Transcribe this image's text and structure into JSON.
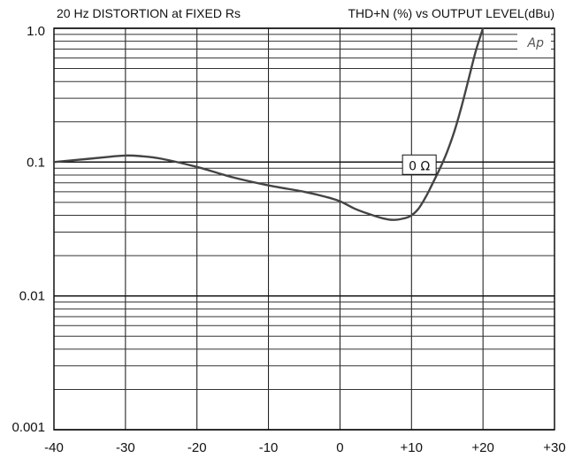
{
  "chart_data": {
    "type": "line",
    "title_left": "20 Hz DISTORTION at FIXED Rs",
    "title_right": "THD+N (%) vs OUTPUT LEVEL(dBu)",
    "xlim": [
      -40,
      30
    ],
    "ylim": [
      0.001,
      1.0
    ],
    "yscale": "log",
    "grid": true,
    "x_ticks": [
      -40,
      -30,
      -20,
      -10,
      0,
      10,
      20,
      30
    ],
    "x_tick_labels": [
      "-40",
      "-30",
      "-20",
      "-10",
      "0",
      "+10",
      "+20",
      "+30"
    ],
    "y_ticks": [
      0.001,
      0.01,
      0.1,
      1.0
    ],
    "y_tick_labels": [
      "0.001",
      "0.01",
      "0.1",
      "1.0"
    ],
    "logo": "Ap",
    "series": [
      {
        "name": "0 Ω",
        "color": "#444444",
        "x": [
          -40,
          -35,
          -32,
          -30,
          -28,
          -25,
          -20,
          -15,
          -10,
          -5,
          -2,
          0,
          2,
          4,
          6,
          7.5,
          9,
          10,
          11,
          12,
          13,
          14,
          15,
          16,
          17,
          18,
          19,
          20
        ],
        "y": [
          0.1,
          0.106,
          0.11,
          0.112,
          0.111,
          0.106,
          0.092,
          0.077,
          0.067,
          0.06,
          0.055,
          0.051,
          0.045,
          0.041,
          0.038,
          0.037,
          0.038,
          0.04,
          0.045,
          0.055,
          0.07,
          0.09,
          0.12,
          0.17,
          0.26,
          0.42,
          0.68,
          1.0
        ]
      }
    ],
    "annotation": {
      "text": "0 Ω",
      "x": 13.2,
      "y": 0.09
    }
  }
}
